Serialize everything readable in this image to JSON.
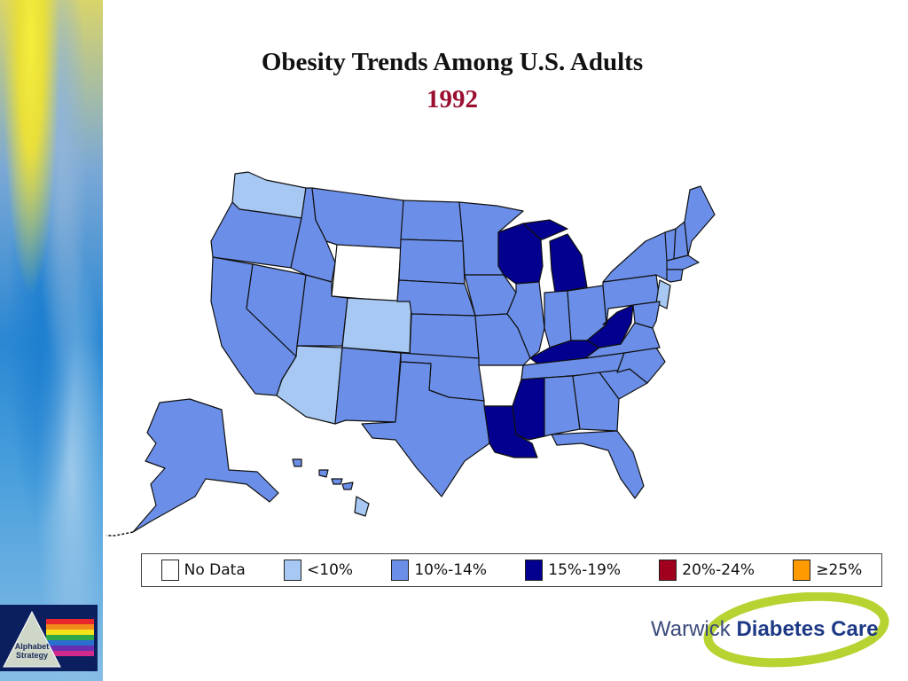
{
  "slide": {
    "title": "Obesity Trends Among U.S. Adults",
    "year": "1992"
  },
  "colors": {
    "no_data": "#ffffff",
    "lt10": "#a6c8f2",
    "p10_14": "#6b8fe8",
    "p15_19": "#03008f",
    "p20_24": "#a0001e",
    "ge25": "#ff9a00",
    "state_border": "#111111"
  },
  "legend": {
    "items": [
      {
        "label": "No Data",
        "color": "#ffffff"
      },
      {
        "label": "<10%",
        "color": "#a6c8f2"
      },
      {
        "label": "10%-14%",
        "color": "#6b8fe8"
      },
      {
        "label": "15%-19%",
        "color": "#03008f"
      },
      {
        "label": "20%-24%",
        "color": "#a0001e"
      },
      {
        "label": "≥25%",
        "color": "#ff9a00"
      }
    ]
  },
  "badge": {
    "title_line1": "Alphabet",
    "title_line2": "Strategy"
  },
  "logo": {
    "word1": "Warwick",
    "word2": "Diabetes Care"
  }
}
